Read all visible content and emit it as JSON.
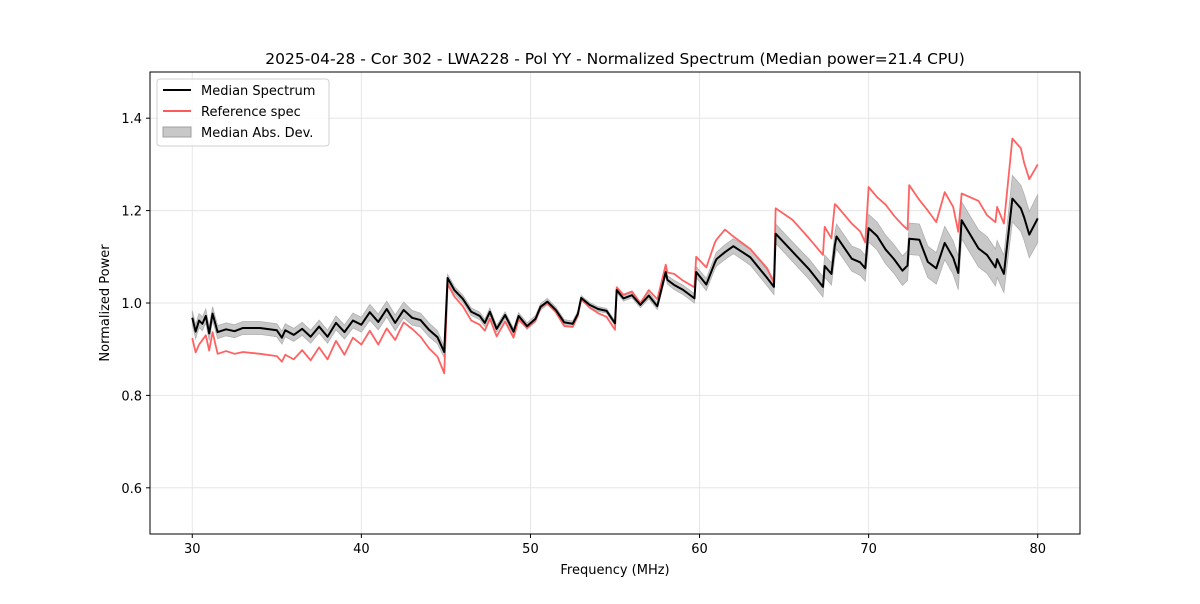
{
  "chart_data": {
    "type": "line",
    "title": "2025-04-28 - Cor 302 - LWA228 - Pol YY - Normalized Spectrum (Median power=21.4 CPU)",
    "xlabel": "Frequency (MHz)",
    "ylabel": "Normalized Power",
    "xlim": [
      27.5,
      82.5
    ],
    "ylim": [
      0.5,
      1.5
    ],
    "xticks": [
      30,
      40,
      50,
      60,
      70,
      80
    ],
    "xtick_labels": [
      "30",
      "40",
      "50",
      "60",
      "70",
      "80"
    ],
    "yticks": [
      0.6,
      0.8,
      1.0,
      1.2,
      1.4
    ],
    "ytick_labels": [
      "0.6",
      "0.8",
      "1.0",
      "1.2",
      "1.4"
    ],
    "grid": true,
    "legend_position": "top-left",
    "legend": [
      {
        "label": "Median Spectrum",
        "kind": "line",
        "color": "#000000"
      },
      {
        "label": "Reference spec",
        "kind": "line",
        "color": "#ff5a5a"
      },
      {
        "label": "Median Abs. Dev.",
        "kind": "band",
        "color": "#c8c8c8"
      }
    ],
    "x": [
      30.0,
      30.2,
      30.4,
      30.6,
      30.8,
      31.0,
      31.2,
      31.5,
      32.0,
      32.5,
      33.0,
      34.0,
      35.0,
      35.3,
      35.5,
      36.0,
      36.5,
      37.0,
      37.5,
      38.0,
      38.5,
      39.0,
      39.5,
      40.0,
      40.5,
      41.0,
      41.5,
      42.0,
      42.5,
      43.0,
      43.5,
      44.0,
      44.5,
      44.9,
      45.1,
      45.5,
      46.0,
      46.5,
      47.0,
      47.3,
      47.6,
      48.0,
      48.5,
      49.0,
      49.3,
      49.8,
      50.3,
      50.6,
      51.0,
      51.5,
      52.0,
      52.5,
      52.8,
      53.0,
      53.5,
      54.0,
      54.5,
      55.0,
      55.1,
      55.5,
      56.0,
      56.5,
      57.0,
      57.5,
      58.0,
      58.1,
      58.5,
      59.0,
      59.7,
      59.8,
      60.4,
      60.9,
      61.0,
      61.5,
      62.0,
      63.0,
      64.0,
      64.4,
      64.5,
      65.5,
      66.5,
      67.3,
      67.4,
      67.8,
      68.0,
      68.1,
      69.0,
      69.5,
      69.8,
      70.0,
      70.5,
      71.0,
      71.5,
      72.0,
      72.3,
      72.4,
      73.0,
      73.5,
      74.0,
      74.5,
      75.0,
      75.3,
      75.5,
      76.5,
      77.0,
      77.5,
      77.6,
      78.0,
      78.5,
      79.0,
      79.2,
      79.5,
      80.0
    ],
    "series": [
      {
        "name": "Median Spectrum",
        "color": "#000000",
        "values": [
          0.968,
          0.938,
          0.962,
          0.955,
          0.972,
          0.934,
          0.977,
          0.937,
          0.943,
          0.939,
          0.946,
          0.946,
          0.941,
          0.925,
          0.941,
          0.931,
          0.944,
          0.927,
          0.949,
          0.927,
          0.957,
          0.937,
          0.962,
          0.953,
          0.98,
          0.959,
          0.987,
          0.957,
          0.985,
          0.968,
          0.963,
          0.942,
          0.926,
          0.894,
          1.054,
          1.028,
          1.009,
          0.981,
          0.972,
          0.957,
          0.981,
          0.944,
          0.974,
          0.938,
          0.972,
          0.95,
          0.966,
          0.992,
          1.003,
          0.985,
          0.958,
          0.955,
          0.976,
          1.011,
          0.996,
          0.987,
          0.983,
          0.956,
          1.028,
          1.01,
          1.017,
          0.996,
          1.016,
          0.993,
          1.067,
          1.05,
          1.039,
          1.029,
          1.01,
          1.067,
          1.04,
          1.087,
          1.095,
          1.11,
          1.123,
          1.099,
          1.054,
          1.035,
          1.15,
          1.111,
          1.072,
          1.035,
          1.08,
          1.063,
          1.124,
          1.144,
          1.096,
          1.088,
          1.075,
          1.162,
          1.145,
          1.116,
          1.095,
          1.07,
          1.081,
          1.139,
          1.137,
          1.089,
          1.075,
          1.13,
          1.098,
          1.065,
          1.179,
          1.118,
          1.104,
          1.077,
          1.095,
          1.063,
          1.226,
          1.205,
          1.185,
          1.148,
          1.183,
          1.166,
          1.176
        ]
      },
      {
        "name": "Reference spec",
        "color": "#ff5a5a",
        "values": [
          0.924,
          0.893,
          0.91,
          0.92,
          0.93,
          0.897,
          0.937,
          0.89,
          0.896,
          0.89,
          0.894,
          0.89,
          0.885,
          0.873,
          0.888,
          0.878,
          0.898,
          0.876,
          0.904,
          0.878,
          0.918,
          0.888,
          0.925,
          0.91,
          0.94,
          0.91,
          0.945,
          0.92,
          0.958,
          0.944,
          0.927,
          0.902,
          0.884,
          0.848,
          1.041,
          1.014,
          0.993,
          0.962,
          0.953,
          0.94,
          0.966,
          0.928,
          0.96,
          0.925,
          0.964,
          0.946,
          0.962,
          0.99,
          1.0,
          0.98,
          0.95,
          0.948,
          0.972,
          1.008,
          0.99,
          0.978,
          0.97,
          0.942,
          1.034,
          1.018,
          1.025,
          1.0,
          1.028,
          1.008,
          1.083,
          1.066,
          1.063,
          1.049,
          1.034,
          1.1,
          1.077,
          1.13,
          1.137,
          1.159,
          1.144,
          1.117,
          1.075,
          1.044,
          1.205,
          1.18,
          1.139,
          1.104,
          1.165,
          1.14,
          1.214,
          1.211,
          1.172,
          1.155,
          1.131,
          1.251,
          1.229,
          1.213,
          1.189,
          1.169,
          1.159,
          1.255,
          1.223,
          1.2,
          1.175,
          1.24,
          1.208,
          1.154,
          1.237,
          1.221,
          1.19,
          1.175,
          1.208,
          1.172,
          1.356,
          1.335,
          1.303,
          1.268,
          1.3,
          1.31,
          1.288
        ]
      }
    ],
    "band": {
      "name": "Median Abs. Dev.",
      "color": "#c8c8c8",
      "half_width": [
        0.015,
        0.015,
        0.015,
        0.015,
        0.015,
        0.015,
        0.015,
        0.014,
        0.014,
        0.014,
        0.014,
        0.014,
        0.014,
        0.014,
        0.014,
        0.014,
        0.014,
        0.014,
        0.014,
        0.014,
        0.015,
        0.015,
        0.016,
        0.016,
        0.017,
        0.017,
        0.017,
        0.017,
        0.017,
        0.016,
        0.015,
        0.015,
        0.014,
        0.012,
        0.008,
        0.008,
        0.008,
        0.008,
        0.008,
        0.008,
        0.008,
        0.007,
        0.007,
        0.007,
        0.007,
        0.007,
        0.007,
        0.007,
        0.007,
        0.006,
        0.006,
        0.006,
        0.006,
        0.005,
        0.005,
        0.005,
        0.005,
        0.005,
        0.005,
        0.006,
        0.006,
        0.006,
        0.007,
        0.007,
        0.008,
        0.009,
        0.01,
        0.01,
        0.01,
        0.012,
        0.013,
        0.014,
        0.015,
        0.016,
        0.016,
        0.017,
        0.017,
        0.017,
        0.021,
        0.021,
        0.022,
        0.022,
        0.024,
        0.024,
        0.026,
        0.027,
        0.027,
        0.028,
        0.028,
        0.03,
        0.03,
        0.031,
        0.031,
        0.032,
        0.032,
        0.034,
        0.034,
        0.034,
        0.034,
        0.036,
        0.036,
        0.036,
        0.04,
        0.04,
        0.04,
        0.04,
        0.04,
        0.04,
        0.05,
        0.05,
        0.05,
        0.05,
        0.052,
        0.052,
        0.052
      ]
    }
  }
}
